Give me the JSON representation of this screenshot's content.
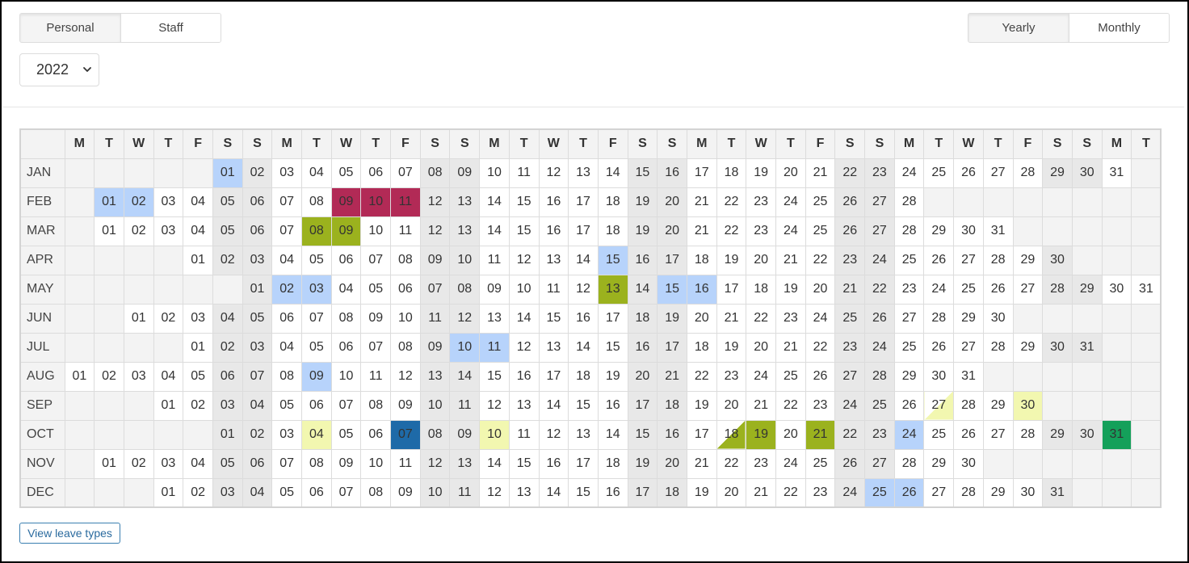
{
  "tabs_left": [
    {
      "label": "Personal",
      "active": true
    },
    {
      "label": "Staff",
      "active": false
    }
  ],
  "tabs_right": [
    {
      "label": "Yearly",
      "active": true
    },
    {
      "label": "Monthly",
      "active": false
    }
  ],
  "year_select": {
    "value": "2022",
    "icon": "chevron-down-icon"
  },
  "weekday_headers": [
    "M",
    "T",
    "W",
    "T",
    "F",
    "S",
    "S",
    "M",
    "T",
    "W",
    "T",
    "F",
    "S",
    "S",
    "M",
    "T",
    "W",
    "T",
    "F",
    "S",
    "S",
    "M",
    "T",
    "W",
    "T",
    "F",
    "S",
    "S",
    "M",
    "T",
    "W",
    "T",
    "F",
    "S",
    "S",
    "M",
    "T"
  ],
  "months": [
    {
      "name": "JAN",
      "offset": 5,
      "days": 31
    },
    {
      "name": "FEB",
      "offset": 1,
      "days": 28
    },
    {
      "name": "MAR",
      "offset": 1,
      "days": 31
    },
    {
      "name": "APR",
      "offset": 4,
      "days": 30
    },
    {
      "name": "MAY",
      "offset": 6,
      "days": 31
    },
    {
      "name": "JUN",
      "offset": 2,
      "days": 30
    },
    {
      "name": "JUL",
      "offset": 4,
      "days": 31
    },
    {
      "name": "AUG",
      "offset": 0,
      "days": 31
    },
    {
      "name": "SEP",
      "offset": 3,
      "days": 30
    },
    {
      "name": "OCT",
      "offset": 5,
      "days": 31
    },
    {
      "name": "NOV",
      "offset": 1,
      "days": 30
    },
    {
      "name": "DEC",
      "offset": 3,
      "days": 31
    }
  ],
  "leave_colors": {
    "lightblue": "#b7d3fb",
    "crimson": "#b22a56",
    "olive": "#9bb21e",
    "yellow": "#f2f7b0",
    "navy": "#1e6aa8",
    "green": "#14a05a"
  },
  "leave_days": [
    {
      "month": "JAN",
      "day": 1,
      "style": "lightblue"
    },
    {
      "month": "FEB",
      "day": 1,
      "style": "lightblue"
    },
    {
      "month": "FEB",
      "day": 2,
      "style": "lightblue"
    },
    {
      "month": "FEB",
      "day": 9,
      "style": "crimson"
    },
    {
      "month": "FEB",
      "day": 10,
      "style": "crimson"
    },
    {
      "month": "FEB",
      "day": 11,
      "style": "crimson"
    },
    {
      "month": "MAR",
      "day": 8,
      "style": "olive"
    },
    {
      "month": "MAR",
      "day": 9,
      "style": "olive"
    },
    {
      "month": "APR",
      "day": 15,
      "style": "lightblue"
    },
    {
      "month": "MAY",
      "day": 2,
      "style": "lightblue"
    },
    {
      "month": "MAY",
      "day": 3,
      "style": "lightblue"
    },
    {
      "month": "MAY",
      "day": 13,
      "style": "olive"
    },
    {
      "month": "MAY",
      "day": 15,
      "style": "lightblue"
    },
    {
      "month": "MAY",
      "day": 16,
      "style": "lightblue"
    },
    {
      "month": "JUL",
      "day": 10,
      "style": "lightblue"
    },
    {
      "month": "JUL",
      "day": 11,
      "style": "lightblue"
    },
    {
      "month": "AUG",
      "day": 9,
      "style": "lightblue"
    },
    {
      "month": "SEP",
      "day": 27,
      "style": "half-yellow"
    },
    {
      "month": "SEP",
      "day": 30,
      "style": "yellow"
    },
    {
      "month": "OCT",
      "day": 4,
      "style": "yellow"
    },
    {
      "month": "OCT",
      "day": 7,
      "style": "navy"
    },
    {
      "month": "OCT",
      "day": 10,
      "style": "yellow"
    },
    {
      "month": "OCT",
      "day": 18,
      "style": "half-olive"
    },
    {
      "month": "OCT",
      "day": 19,
      "style": "olive"
    },
    {
      "month": "OCT",
      "day": 21,
      "style": "olive"
    },
    {
      "month": "OCT",
      "day": 24,
      "style": "lightblue"
    },
    {
      "month": "OCT",
      "day": 31,
      "style": "green"
    },
    {
      "month": "DEC",
      "day": 25,
      "style": "lightblue"
    },
    {
      "month": "DEC",
      "day": 26,
      "style": "lightblue"
    }
  ],
  "legend_button": {
    "label": "View leave types"
  }
}
